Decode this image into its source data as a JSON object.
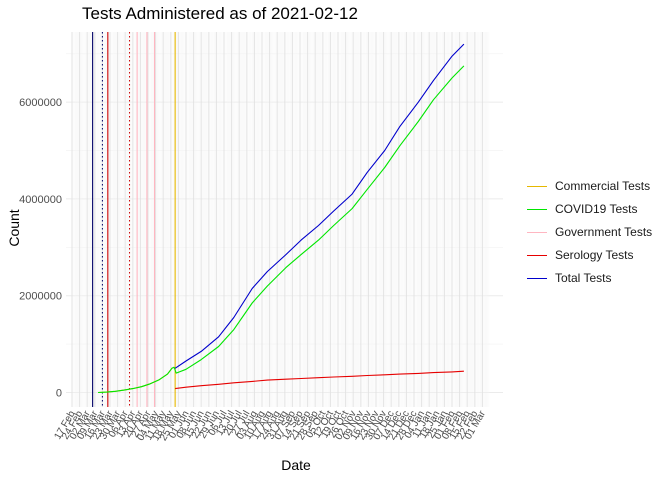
{
  "chart_data": {
    "type": "line",
    "title": "Tests Administered as of 2021-02-12",
    "xlabel": "Date",
    "ylabel": "Count",
    "x_start": "2020-02-17",
    "ylim": [
      -300000,
      7450000
    ],
    "y_ticks": [
      0,
      2000000,
      4000000,
      6000000
    ],
    "y_tick_labels": [
      "0",
      "2000000",
      "4000000",
      "6000000"
    ],
    "x_tick_labels": [
      "17 Feb",
      "24 Feb",
      "02 Mar",
      "09 Mar",
      "16 Mar",
      "23 Mar",
      "30 Mar",
      "06 Apr",
      "13 Apr",
      "20 Apr",
      "27 Apr",
      "04 May",
      "11 May",
      "18 May",
      "25 May",
      "01 Jun",
      "08 Jun",
      "15 Jun",
      "22 Jun",
      "29 Jun",
      "06 Jul",
      "13 Jul",
      "20 Jul",
      "27 Jul",
      "03 Aug",
      "10 Aug",
      "17 Aug",
      "24 Aug",
      "31 Aug",
      "07 Sep",
      "14 Sep",
      "21 Sep",
      "28 Sep",
      "05 Oct",
      "12 Oct",
      "19 Oct",
      "26 Oct",
      "02 Nov",
      "09 Nov",
      "16 Nov",
      "23 Nov",
      "30 Nov",
      "07 Dec",
      "14 Dec",
      "21 Dec",
      "28 Dec",
      "04 Jan",
      "11 Jan",
      "18 Jan",
      "25 Jan",
      "01 Feb",
      "08 Feb",
      "15 Feb",
      "22 Feb",
      "01 Mar"
    ],
    "grid": true,
    "legend_position": "right",
    "series": [
      {
        "name": "Commercial Tests",
        "color": "#E6B800",
        "x": [
          "2020-03-12",
          "2020-03-20",
          "2020-03-28",
          "2020-04-05",
          "2020-04-13",
          "2020-04-21",
          "2020-04-29",
          "2020-05-07",
          "2020-05-15",
          "2020-05-19",
          "2020-05-21"
        ],
        "y": [
          0,
          8000,
          25000,
          50000,
          80000,
          120000,
          180000,
          260000,
          380000,
          500000,
          520000
        ]
      },
      {
        "name": "COVID19 Tests",
        "color": "#00E600",
        "x": [
          "2020-03-12",
          "2020-03-20",
          "2020-03-28",
          "2020-04-05",
          "2020-04-13",
          "2020-04-21",
          "2020-04-29",
          "2020-05-07",
          "2020-05-15",
          "2020-05-19",
          "2020-05-21",
          "2020-05-23",
          "2020-06-01",
          "2020-06-15",
          "2020-07-01",
          "2020-07-15",
          "2020-08-01",
          "2020-08-15",
          "2020-09-01",
          "2020-09-15",
          "2020-10-01",
          "2020-10-15",
          "2020-11-01",
          "2020-11-15",
          "2020-12-01",
          "2020-12-15",
          "2021-01-01",
          "2021-01-15",
          "2021-02-01",
          "2021-02-12"
        ],
        "y": [
          0,
          8000,
          25000,
          50000,
          80000,
          120000,
          180000,
          260000,
          380000,
          500000,
          520000,
          400000,
          480000,
          680000,
          950000,
          1300000,
          1850000,
          2200000,
          2580000,
          2850000,
          3150000,
          3450000,
          3800000,
          4200000,
          4650000,
          5100000,
          5600000,
          6050000,
          6500000,
          6750000
        ]
      },
      {
        "name": "Government Tests",
        "color": "#FFB6C1",
        "x": [],
        "y": []
      },
      {
        "name": "Serology Tests",
        "color": "#E60000",
        "x": [
          "2020-05-22",
          "2020-06-01",
          "2020-06-15",
          "2020-07-01",
          "2020-07-15",
          "2020-08-01",
          "2020-08-15",
          "2020-09-01",
          "2020-09-15",
          "2020-10-01",
          "2020-10-15",
          "2020-11-01",
          "2020-11-15",
          "2020-12-01",
          "2020-12-15",
          "2021-01-01",
          "2021-01-15",
          "2021-02-01",
          "2021-02-12"
        ],
        "y": [
          80000,
          110000,
          140000,
          170000,
          200000,
          230000,
          255000,
          275000,
          290000,
          305000,
          320000,
          335000,
          350000,
          365000,
          380000,
          395000,
          410000,
          425000,
          440000
        ]
      },
      {
        "name": "Total Tests",
        "color": "#0000CC",
        "x": [
          "2020-05-22",
          "2020-06-01",
          "2020-06-15",
          "2020-07-01",
          "2020-07-15",
          "2020-08-01",
          "2020-08-15",
          "2020-09-01",
          "2020-09-15",
          "2020-10-01",
          "2020-10-15",
          "2020-11-01",
          "2020-11-15",
          "2020-12-01",
          "2020-12-15",
          "2021-01-01",
          "2021-01-15",
          "2021-02-01",
          "2021-02-12"
        ],
        "y": [
          500000,
          650000,
          850000,
          1150000,
          1550000,
          2150000,
          2500000,
          2850000,
          3150000,
          3450000,
          3750000,
          4100000,
          4550000,
          5000000,
          5500000,
          6000000,
          6450000,
          6950000,
          7200000
        ]
      }
    ],
    "reference_lines": [
      {
        "date": "2020-03-07",
        "color": "#000066",
        "style": "solid"
      },
      {
        "date": "2020-03-16",
        "color": "#000066",
        "style": "dotted"
      },
      {
        "date": "2020-03-21",
        "color": "#CC0000",
        "style": "solid"
      },
      {
        "date": "2020-04-10",
        "color": "#CC0000",
        "style": "dotted"
      },
      {
        "date": "2020-04-17",
        "color": "#FFB6C1",
        "style": "solid"
      },
      {
        "date": "2020-04-26",
        "color": "#FFB6C1",
        "style": "solid"
      },
      {
        "date": "2020-05-03",
        "color": "#FFB6C1",
        "style": "solid"
      },
      {
        "date": "2020-05-22",
        "color": "#E6B800",
        "style": "solid"
      }
    ]
  }
}
